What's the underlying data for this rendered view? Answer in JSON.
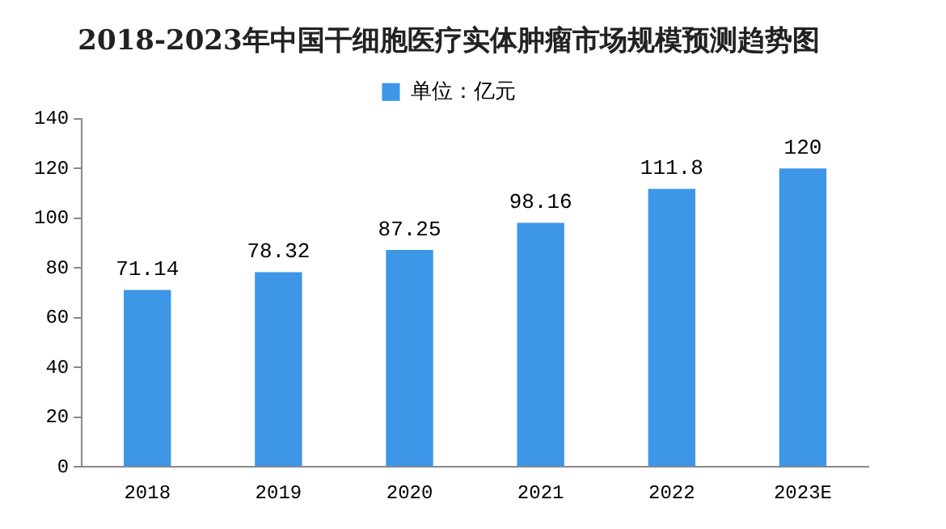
{
  "chart_data": {
    "type": "bar",
    "title": "2018-2023年中国干细胞医疗实体肿瘤市场规模预测趋势图",
    "categories": [
      "2018",
      "2019",
      "2020",
      "2021",
      "2022",
      "2023E"
    ],
    "series": [
      {
        "name": "单位：亿元",
        "color": "#3d96e6",
        "values": [
          71.14,
          78.32,
          87.25,
          98.16,
          111.8,
          120
        ]
      }
    ],
    "ylim": [
      0,
      140
    ],
    "yticks": [
      0,
      20,
      40,
      60,
      80,
      100,
      120,
      140
    ],
    "grid": false,
    "legend": "top",
    "data_labels": true
  }
}
